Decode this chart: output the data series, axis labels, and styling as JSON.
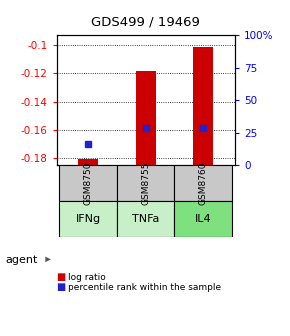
{
  "title": "GDS499 / 19469",
  "samples": [
    "GSM8750",
    "GSM8755",
    "GSM8760"
  ],
  "agents": [
    "IFNg",
    "TNFa",
    "IL4"
  ],
  "sample_bg": "#c8c8c8",
  "agent_colors": [
    "#c8f0c8",
    "#c8f0c8",
    "#7fe07f"
  ],
  "log_ratio_values": [
    -0.181,
    -0.118,
    -0.101
  ],
  "percentile_values": [
    0.165,
    0.285,
    0.285
  ],
  "ylim_min": -0.185,
  "ylim_max": -0.093,
  "yticks_left": [
    -0.1,
    -0.12,
    -0.14,
    -0.16,
    -0.18
  ],
  "yticks_right_labels": [
    "100%",
    "75",
    "50",
    "25",
    "0"
  ],
  "yticks_right_pcts": [
    1.0,
    0.75,
    0.5,
    0.25,
    0.0
  ],
  "bar_color": "#cc0000",
  "dot_color": "#2222cc",
  "bar_bottom": -0.185,
  "bar_width": 0.35,
  "legend_log_label": "log ratio",
  "legend_pct_label": "percentile rank within the sample"
}
